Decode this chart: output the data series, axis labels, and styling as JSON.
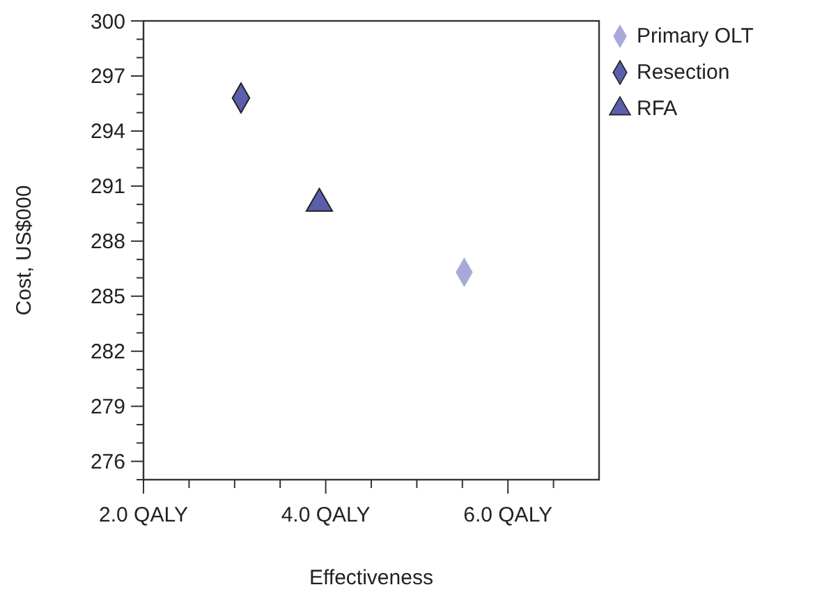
{
  "chart_data": {
    "type": "scatter",
    "xlabel": "Effectiveness",
    "ylabel": "Cost, US$000",
    "xlim": [
      2,
      7
    ],
    "ylim": [
      275,
      300
    ],
    "xticks": [
      {
        "value": 2,
        "label": "2.0 QALY"
      },
      {
        "value": 2.5,
        "label": null
      },
      {
        "value": 3,
        "label": null
      },
      {
        "value": 3.5,
        "label": null
      },
      {
        "value": 4,
        "label": "4.0 QALY"
      },
      {
        "value": 4.5,
        "label": null
      },
      {
        "value": 5,
        "label": null
      },
      {
        "value": 5.5,
        "label": null
      },
      {
        "value": 6,
        "label": "6.0 QALY"
      },
      {
        "value": 6.5,
        "label": null
      }
    ],
    "yticks": [
      {
        "value": 275,
        "label": null
      },
      276,
      {
        "value": 277,
        "label": null
      },
      {
        "value": 278,
        "label": null
      },
      279,
      {
        "value": 280,
        "label": null
      },
      {
        "value": 281,
        "label": null
      },
      282,
      {
        "value": 283,
        "label": null
      },
      {
        "value": 284,
        "label": null
      },
      285,
      {
        "value": 286,
        "label": null
      },
      {
        "value": 287,
        "label": null
      },
      288,
      {
        "value": 289,
        "label": null
      },
      {
        "value": 290,
        "label": null
      },
      291,
      {
        "value": 292,
        "label": null
      },
      {
        "value": 293,
        "label": null
      },
      294,
      {
        "value": 295,
        "label": null
      },
      {
        "value": 296,
        "label": null
      },
      297,
      {
        "value": 298,
        "label": null
      },
      {
        "value": 299,
        "label": null
      },
      300
    ],
    "legend": "right",
    "grid": false,
    "series": [
      {
        "name": "Primary OLT",
        "color": "#a9a9d9",
        "marker": "diamond",
        "x": [
          5.52
        ],
        "values": [
          286.3
        ]
      },
      {
        "name": "Resection",
        "color": "#5b5eab",
        "marker": "diamond",
        "x": [
          3.07
        ],
        "values": [
          295.8
        ]
      },
      {
        "name": "RFA",
        "color": "#5b5eab",
        "marker": "triangle",
        "x": [
          3.93
        ],
        "values": [
          290.2
        ]
      }
    ]
  }
}
